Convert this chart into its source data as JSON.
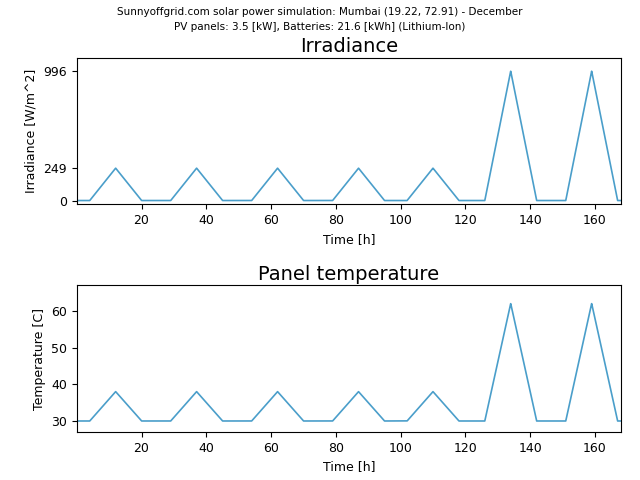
{
  "title_main": "Sunnyoffgrid.com solar power simulation: Mumbai (19.22, 72.91) - December",
  "title_sub": "PV panels: 3.5 [kW], Batteries: 21.6 [kWh] (Lithium-Ion)",
  "irradiance_title": "Irradiance",
  "irradiance_ylabel": "Irradiance [W/m^2]",
  "temperature_title": "Panel temperature",
  "temperature_ylabel": "Temperature [C]",
  "xlabel": "Time [h]",
  "line_color": "#4a9eca",
  "irradiance_yticks": [
    0,
    249,
    996
  ],
  "temperature_yticks": [
    30,
    40,
    50,
    60
  ],
  "xlim": [
    0,
    168
  ],
  "xticks": [
    20,
    40,
    60,
    80,
    100,
    120,
    140,
    160
  ],
  "peak_centers": [
    12,
    37,
    62,
    87,
    110,
    134,
    159
  ],
  "peak_irradiance": [
    249,
    249,
    249,
    249,
    249,
    996,
    996
  ],
  "peak_temperature": [
    38,
    38,
    38,
    38,
    38,
    62,
    62
  ],
  "base_temperature": 30,
  "peak_half_widths_irr": [
    8,
    8,
    8,
    8,
    8,
    8,
    8
  ],
  "peak_half_widths_temp": [
    8,
    8,
    8,
    8,
    8,
    8,
    8
  ],
  "figsize": [
    6.4,
    4.8
  ],
  "dpi": 100,
  "title_fontsize": 7.5,
  "axis_title_fontsize": 14,
  "tick_labelsize": 9,
  "ylabel_fontsize": 9,
  "xlabel_fontsize": 9
}
